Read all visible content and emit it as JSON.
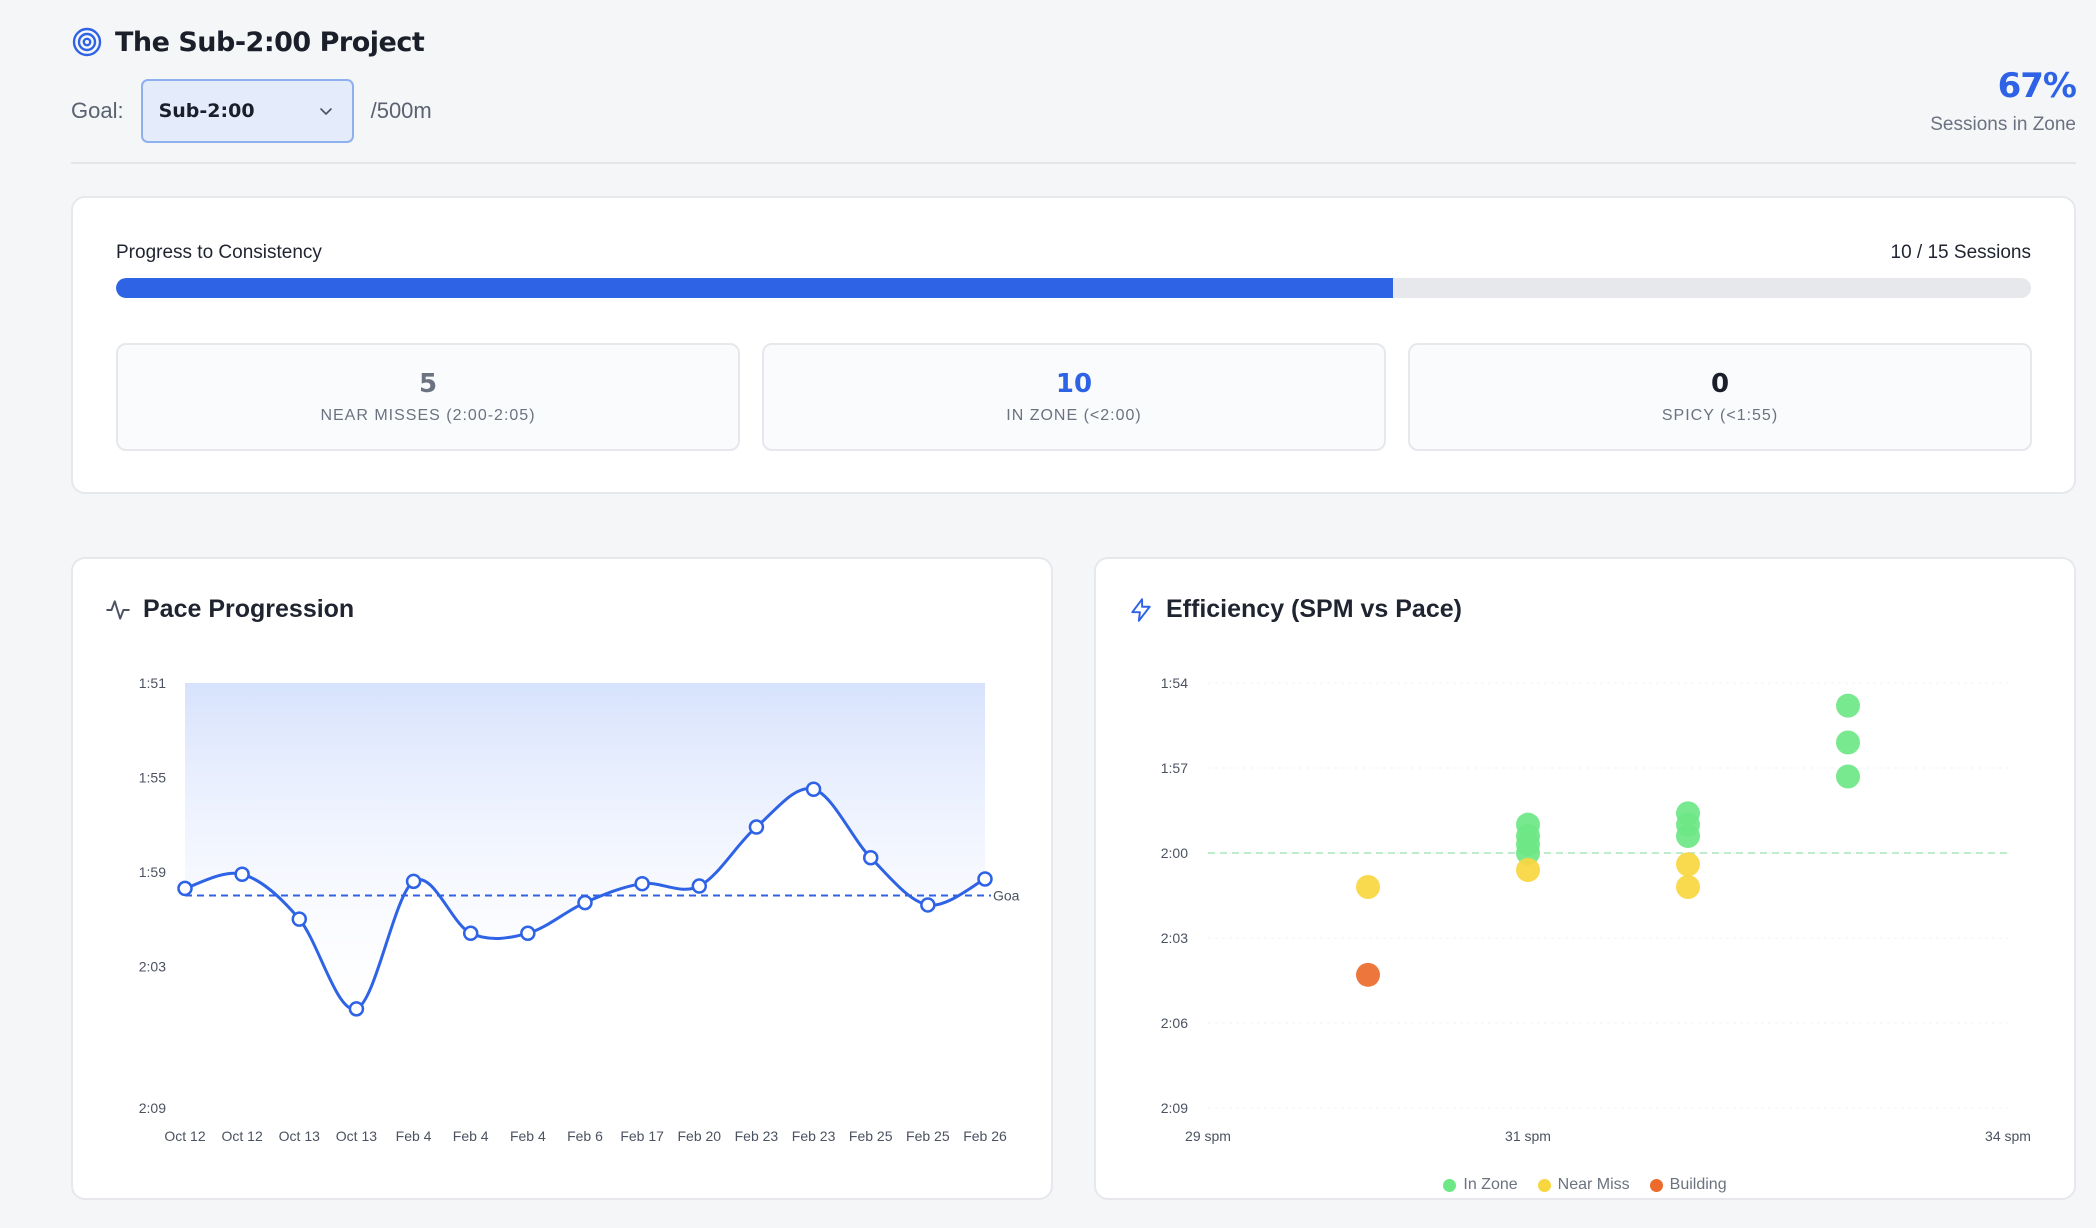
{
  "header": {
    "title": "The Sub-2:00 Project",
    "goal_label": "Goal:",
    "goal_value": "Sub-2:00",
    "unit": "/500m",
    "zone_pct": "67%",
    "zone_caption": "Sessions in Zone"
  },
  "progress": {
    "label": "Progress to Consistency",
    "count_text": "10 / 15 Sessions",
    "fraction": 0.667
  },
  "stats": [
    {
      "value": "5",
      "label": "NEAR MISSES (2:00-2:05)",
      "color": "#6b7280"
    },
    {
      "value": "10",
      "label": "IN ZONE (<2:00)",
      "color": "#2f63e6"
    },
    {
      "value": "0",
      "label": "SPICY (<1:55)",
      "color": "#1b1f2a"
    }
  ],
  "pace_chart": {
    "title": "Pace Progression",
    "y_ticks": [
      "1:51",
      "1:55",
      "1:59",
      "2:03",
      "2:09"
    ],
    "goal_label": "Goa"
  },
  "efficiency_chart": {
    "title": "Efficiency (SPM vs Pace)",
    "y_ticks": [
      "1:54",
      "1:57",
      "2:00",
      "2:03",
      "2:06",
      "2:09"
    ],
    "x_ticks": [
      "29 spm",
      "31 spm",
      "34 spm"
    ],
    "legend": [
      {
        "label": "In Zone",
        "color": "#6ee787"
      },
      {
        "label": "Near Miss",
        "color": "#f8d63f"
      },
      {
        "label": "Building",
        "color": "#ec6a2c"
      }
    ]
  },
  "chart_data": [
    {
      "type": "line",
      "title": "Pace Progression",
      "xlabel": "",
      "ylabel": "",
      "y_unit": "seconds per 500m (tick labels show m:ss)",
      "ylim": [
        111,
        129
      ],
      "y_inverted": true,
      "categories": [
        "Oct 12",
        "Oct 12",
        "Oct 13",
        "Oct 13",
        "Feb 4",
        "Feb 4",
        "Feb 4",
        "Feb 6",
        "Feb 17",
        "Feb 20",
        "Feb 23",
        "Feb 23",
        "Feb 25",
        "Feb 25",
        "Feb 26"
      ],
      "series": [
        {
          "values": [
            119.7,
            119.1,
            121.0,
            124.8,
            119.4,
            121.6,
            121.6,
            120.3,
            119.5,
            119.6,
            117.1,
            115.5,
            118.4,
            120.4,
            119.3
          ]
        }
      ],
      "goal_line": 120,
      "area_fill": true
    },
    {
      "type": "scatter",
      "title": "Efficiency (SPM vs Pace)",
      "xlabel": "",
      "ylabel": "",
      "x_unit": "strokes per minute",
      "y_unit": "seconds per 500m (tick labels show m:ss)",
      "xlim": [
        29,
        34
      ],
      "ylim": [
        114,
        129
      ],
      "y_inverted": true,
      "goal_line": 120,
      "series": [
        {
          "name": "In Zone",
          "points": [
            [
              31,
              119.0
            ],
            [
              31,
              119.4
            ],
            [
              31,
              119.7
            ],
            [
              31,
              120.0
            ],
            [
              32,
              118.6
            ],
            [
              32,
              119.0
            ],
            [
              32,
              119.4
            ],
            [
              33,
              114.8
            ],
            [
              33,
              116.1
            ],
            [
              33,
              117.3
            ]
          ]
        },
        {
          "name": "Near Miss",
          "points": [
            [
              30,
              121.2
            ],
            [
              31,
              120.6
            ],
            [
              32,
              120.4
            ],
            [
              32,
              121.2
            ]
          ]
        },
        {
          "name": "Building",
          "points": [
            [
              30,
              124.3
            ]
          ]
        }
      ]
    }
  ]
}
